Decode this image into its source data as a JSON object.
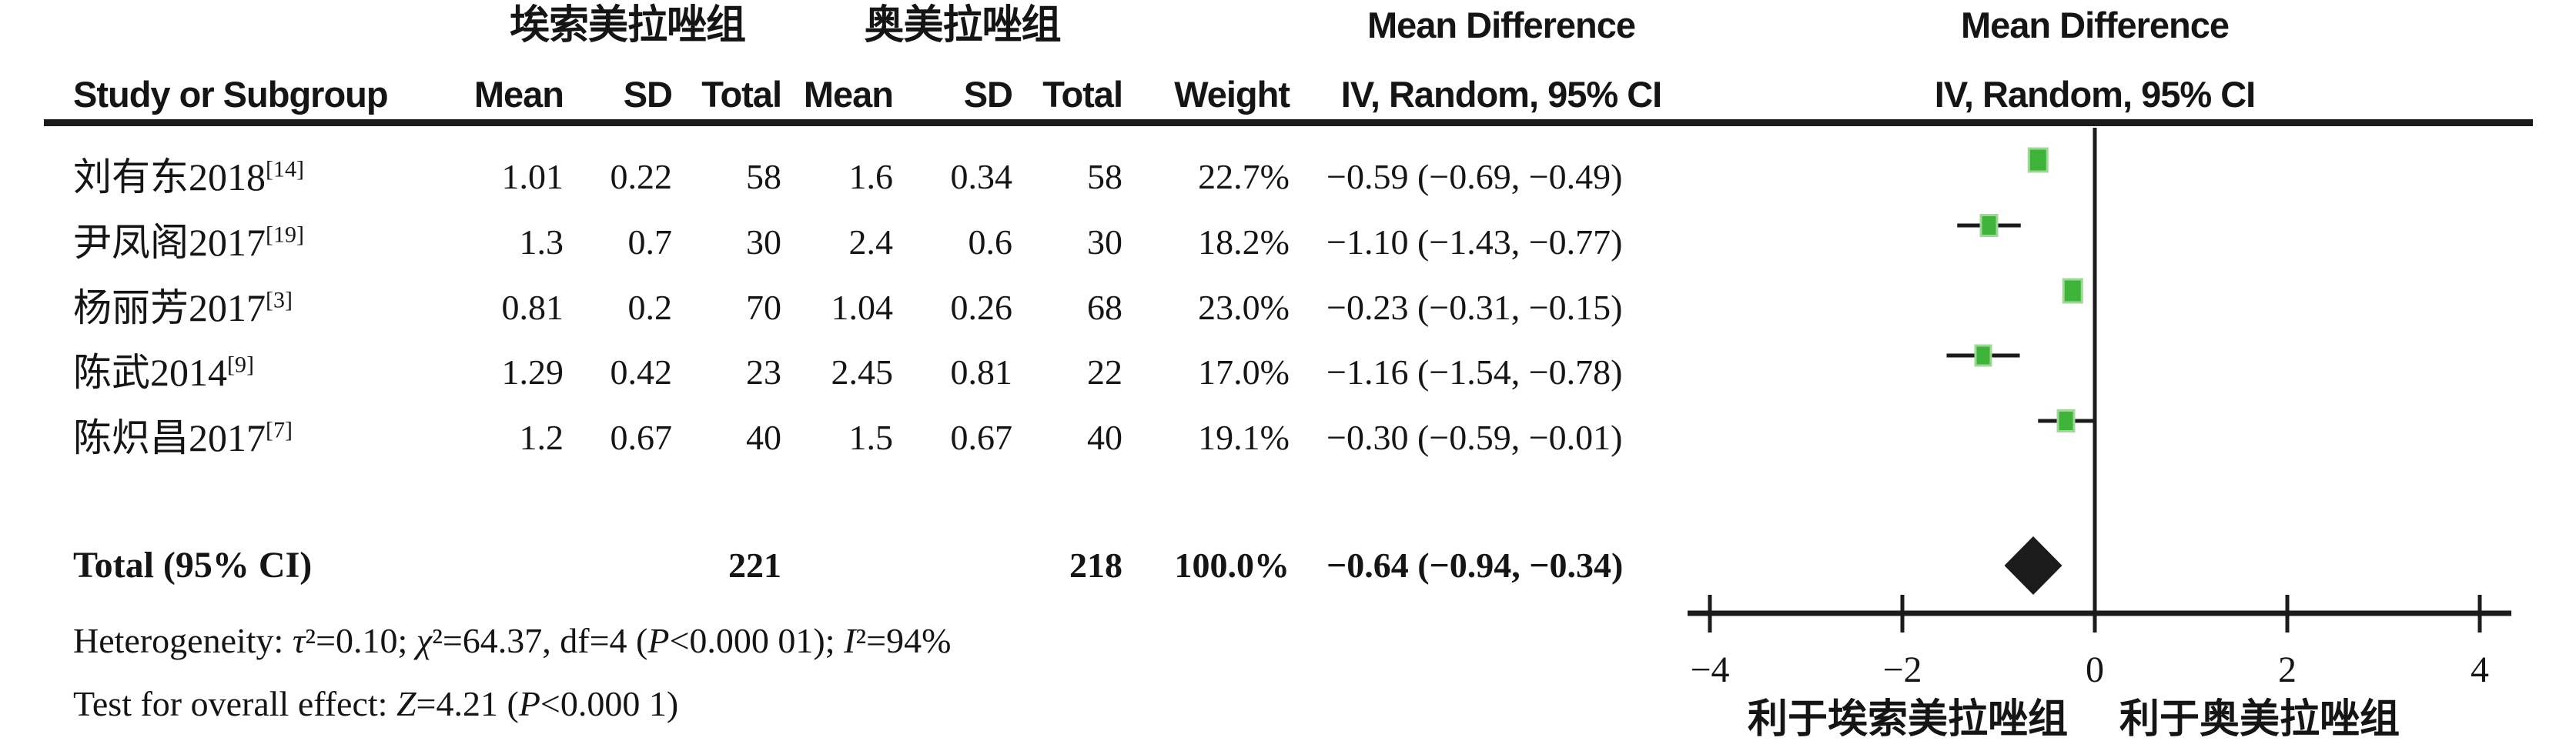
{
  "header": {
    "group1": "埃索美拉唑组",
    "group2": "奥美拉唑组",
    "study_col": "Study or Subgroup",
    "mean": "Mean",
    "sd": "SD",
    "total": "Total",
    "weight": "Weight",
    "md": "Mean Difference",
    "method": "IV, Random, 95% CI"
  },
  "chart_data": {
    "type": "forest",
    "effect_measure": "Mean Difference",
    "model": "IV, Random, 95% CI",
    "studies": [
      {
        "name": "刘有东2018",
        "ref": "[14]",
        "exp_mean": "1.01",
        "exp_sd": "0.22",
        "exp_total": "58",
        "ctrl_mean": "1.6",
        "ctrl_sd": "0.34",
        "ctrl_total": "58",
        "weight": "22.7%",
        "ci_text": "−0.59 (−0.69, −0.49)",
        "md": -0.59,
        "ci_low": -0.69,
        "ci_high": -0.49
      },
      {
        "name": "尹凤阁2017",
        "ref": "[19]",
        "exp_mean": "1.3",
        "exp_sd": "0.7",
        "exp_total": "30",
        "ctrl_mean": "2.4",
        "ctrl_sd": "0.6",
        "ctrl_total": "30",
        "weight": "18.2%",
        "ci_text": "−1.10 (−1.43, −0.77)",
        "md": -1.1,
        "ci_low": -1.43,
        "ci_high": -0.77
      },
      {
        "name": "杨丽芳2017",
        "ref": "[3]",
        "exp_mean": "0.81",
        "exp_sd": "0.2",
        "exp_total": "70",
        "ctrl_mean": "1.04",
        "ctrl_sd": "0.26",
        "ctrl_total": "68",
        "weight": "23.0%",
        "ci_text": "−0.23 (−0.31, −0.15)",
        "md": -0.23,
        "ci_low": -0.31,
        "ci_high": -0.15
      },
      {
        "name": "陈武2014",
        "ref": "[9]",
        "exp_mean": "1.29",
        "exp_sd": "0.42",
        "exp_total": "23",
        "ctrl_mean": "2.45",
        "ctrl_sd": "0.81",
        "ctrl_total": "22",
        "weight": "17.0%",
        "ci_text": "−1.16 (−1.54, −0.78)",
        "md": -1.16,
        "ci_low": -1.54,
        "ci_high": -0.78
      },
      {
        "name": "陈炽昌2017",
        "ref": "[7]",
        "exp_mean": "1.2",
        "exp_sd": "0.67",
        "exp_total": "40",
        "ctrl_mean": "1.5",
        "ctrl_sd": "0.67",
        "ctrl_total": "40",
        "weight": "19.1%",
        "ci_text": "−0.30 (−0.59, −0.01)",
        "md": -0.3,
        "ci_low": -0.59,
        "ci_high": -0.01
      }
    ],
    "total": {
      "label": "Total (95% CI)",
      "exp_total": "221",
      "ctrl_total": "218",
      "weight": "100.0%",
      "ci_text": "−0.64 (−0.94, −0.34)",
      "md": -0.64,
      "ci_low": -0.94,
      "ci_high": -0.34
    },
    "x_ticks": [
      -4,
      -2,
      0,
      2,
      4
    ],
    "xlim": [
      -4.25,
      4.35
    ],
    "favors_left": "利于埃索美拉唑组",
    "favors_right": "利于奥美拉唑组"
  },
  "footnotes": {
    "heterogeneity": [
      {
        "t": "Heterogeneity: ",
        "i": false
      },
      {
        "t": "τ",
        "i": true
      },
      {
        "t": "²=0.10; ",
        "i": false
      },
      {
        "t": "χ",
        "i": true
      },
      {
        "t": "²=64.37, df=4 (",
        "i": false
      },
      {
        "t": "P",
        "i": true
      },
      {
        "t": "<0.000 01); ",
        "i": false
      },
      {
        "t": "I",
        "i": true
      },
      {
        "t": "²=94%",
        "i": false
      }
    ],
    "overall": [
      {
        "t": "Test for overall effect: ",
        "i": false
      },
      {
        "t": "Z",
        "i": true
      },
      {
        "t": "=4.21 (",
        "i": false
      },
      {
        "t": "P",
        "i": true
      },
      {
        "t": "<0.000 1)",
        "i": false
      }
    ]
  },
  "colors": {
    "square": "#3eb43a",
    "square_border": "#9fd896",
    "diamond": "#1b1b1b",
    "line": "#1b1b1b",
    "text": "#151515"
  }
}
